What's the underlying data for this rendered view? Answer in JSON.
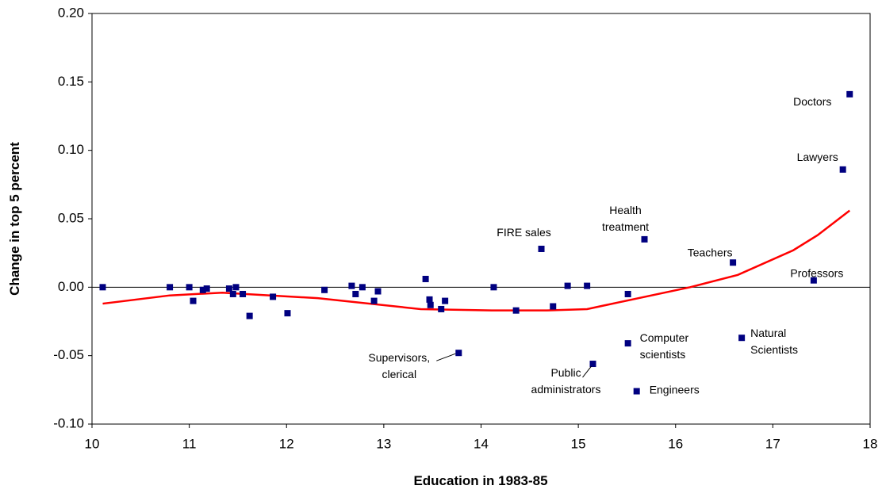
{
  "chart_data": {
    "type": "scatter",
    "x_label": "Education in 1983-85",
    "y_label": "Change in top 5 percent",
    "xlim": [
      10,
      18
    ],
    "xticks": [
      10,
      11,
      12,
      13,
      14,
      15,
      16,
      17,
      18
    ],
    "ylim": [
      -0.1,
      0.2
    ],
    "yticks": [
      {
        "value": 0.2,
        "label": "0.20"
      },
      {
        "value": 0.15,
        "label": "0.15"
      },
      {
        "value": 0.1,
        "label": "0.10"
      },
      {
        "value": 0.05,
        "label": "0.05"
      },
      {
        "value": 0,
        "label": "0.00"
      },
      {
        "value": -0.05,
        "label": "-0.05"
      },
      {
        "value": -0.1,
        "label": "-0.10"
      }
    ],
    "zero_line": true,
    "x": [
      10.11,
      10.8,
      11.0,
      11.04,
      11.14,
      11.18,
      11.41,
      11.45,
      11.48,
      11.55,
      11.62,
      11.86,
      12.01,
      12.39,
      12.67,
      12.71,
      12.78,
      12.9,
      12.94,
      13.43,
      13.47,
      13.48,
      13.59,
      13.63,
      13.77,
      14.13,
      14.36,
      14.62,
      14.74,
      14.89,
      15.09,
      15.15,
      15.51,
      15.51,
      15.6,
      15.68,
      16.59,
      16.68,
      17.42,
      17.72,
      17.79
    ],
    "series": [
      {
        "color": "#000080",
        "values": [
          0,
          0,
          0,
          -0.01,
          -0.002,
          -0.001,
          -0.001,
          -0.005,
          0,
          -0.005,
          -0.021,
          -0.007,
          -0.019,
          -0.002,
          0.001,
          -0.005,
          0,
          -0.01,
          -0.003,
          0.006,
          -0.009,
          -0.013,
          -0.016,
          -0.01,
          -0.048,
          0,
          -0.017,
          0.028,
          -0.014,
          0.001,
          0.001,
          -0.056,
          -0.005,
          -0.041,
          -0.076,
          0.035,
          0.018,
          -0.037,
          0.005,
          0.086,
          0.141
        ],
        "labels": [
          null,
          null,
          null,
          null,
          null,
          null,
          null,
          null,
          null,
          null,
          null,
          null,
          null,
          null,
          null,
          null,
          null,
          null,
          null,
          null,
          null,
          null,
          null,
          null,
          "Supervisors,\nclerical",
          null,
          null,
          "FIRE sales",
          null,
          null,
          null,
          "Public\nadministrators",
          null,
          "Computer\nscientists",
          "Engineers",
          "Health\ntreatment",
          "Teachers",
          "Natural\nScientists",
          "Professors",
          "Lawyers",
          "Doctors"
        ]
      }
    ],
    "fit_line": {
      "color": "#ff0000",
      "x": [
        10.11,
        10.8,
        11.34,
        12.32,
        13.38,
        14.11,
        14.68,
        15.09,
        15.42,
        16.15,
        16.64,
        17.21,
        17.46,
        17.79
      ],
      "values": [
        -0.012,
        -0.006,
        -0.004,
        -0.008,
        -0.016,
        -0.017,
        -0.017,
        -0.016,
        -0.011,
        0,
        0.009,
        0.027,
        0.038,
        0.056
      ]
    }
  }
}
